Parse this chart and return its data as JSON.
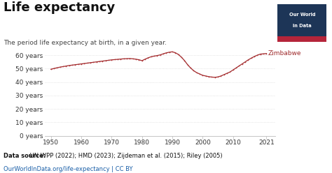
{
  "title": "Life expectancy",
  "subtitle": "The period life expectancy at birth, in a given year.",
  "datasource_bold": "Data source:",
  "datasource_rest": " UN WPP (2022); HMD (2023); Zijdeman et al. (2015); Riley (2005)",
  "url": "OurWorldInData.org/life-expectancy | CC BY",
  "label": "Zimbabwe",
  "line_color": "#9e2a2b",
  "dot_color": "#b5353a",
  "bg_color": "#ffffff",
  "grid_color": "#cccccc",
  "ylim": [
    0,
    65
  ],
  "yticks": [
    0,
    10,
    20,
    30,
    40,
    50,
    60
  ],
  "ytick_labels": [
    "0 years",
    "10 years",
    "20 years",
    "30 years",
    "40 years",
    "50 years",
    "60 years"
  ],
  "xticks": [
    1950,
    1960,
    1970,
    1980,
    1990,
    2000,
    2010,
    2021
  ],
  "years": [
    1950,
    1951,
    1952,
    1953,
    1954,
    1955,
    1956,
    1957,
    1958,
    1959,
    1960,
    1961,
    1962,
    1963,
    1964,
    1965,
    1966,
    1967,
    1968,
    1969,
    1970,
    1971,
    1972,
    1973,
    1974,
    1975,
    1976,
    1977,
    1978,
    1979,
    1980,
    1981,
    1982,
    1983,
    1984,
    1985,
    1986,
    1987,
    1988,
    1989,
    1990,
    1991,
    1992,
    1993,
    1994,
    1995,
    1996,
    1997,
    1998,
    1999,
    2000,
    2001,
    2002,
    2003,
    2004,
    2005,
    2006,
    2007,
    2008,
    2009,
    2010,
    2011,
    2012,
    2013,
    2014,
    2015,
    2016,
    2017,
    2018,
    2019,
    2020,
    2021
  ],
  "values": [
    49.5,
    50.1,
    50.6,
    51.1,
    51.5,
    51.9,
    52.3,
    52.6,
    52.9,
    53.2,
    53.5,
    53.8,
    54.1,
    54.4,
    54.7,
    55.0,
    55.3,
    55.6,
    55.9,
    56.2,
    56.5,
    56.7,
    56.9,
    57.1,
    57.3,
    57.4,
    57.5,
    57.3,
    57.0,
    56.6,
    55.9,
    57.0,
    58.0,
    58.8,
    59.3,
    59.7,
    60.2,
    61.0,
    61.7,
    62.2,
    62.5,
    61.8,
    60.5,
    58.5,
    56.0,
    53.0,
    50.5,
    48.5,
    47.0,
    46.0,
    45.0,
    44.5,
    44.0,
    43.7,
    43.5,
    43.8,
    44.5,
    45.5,
    46.5,
    47.5,
    49.0,
    50.5,
    52.0,
    53.5,
    55.0,
    56.5,
    57.8,
    59.0,
    60.0,
    60.8,
    61.0,
    61.2
  ],
  "owid_bg": "#1d3557",
  "owid_red": "#b5253a",
  "title_fontsize": 13,
  "subtitle_fontsize": 6.5,
  "axis_fontsize": 6.5,
  "footer_fontsize": 6,
  "label_fontsize": 6.5
}
